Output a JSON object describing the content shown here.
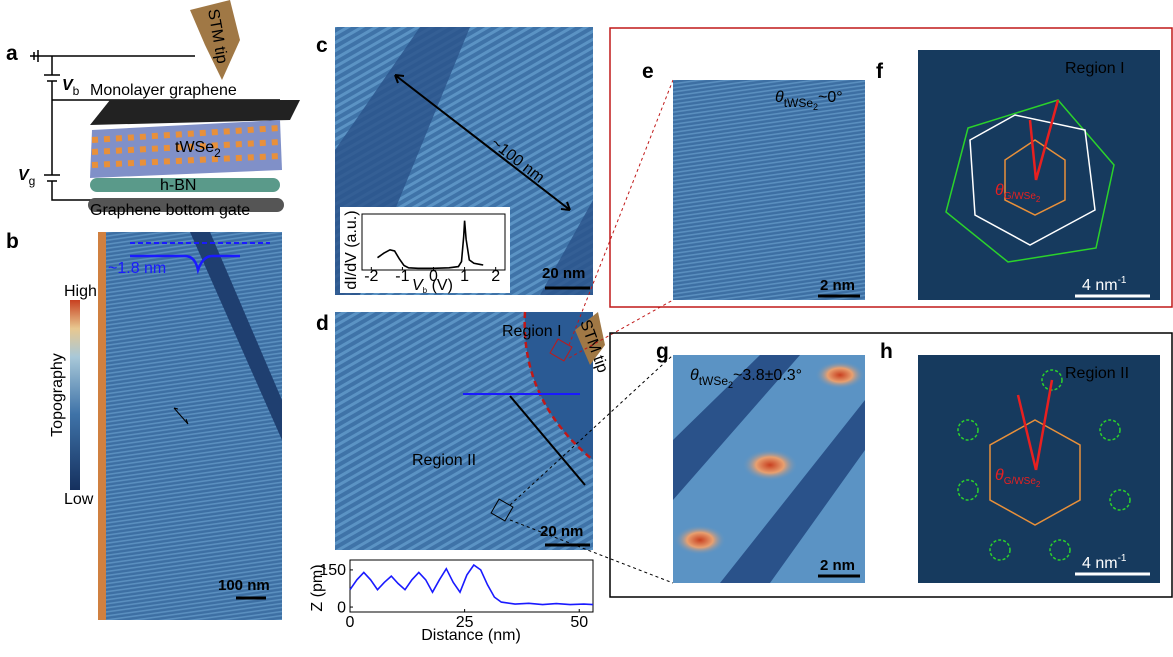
{
  "panels": {
    "a": {
      "label": "a",
      "tip": "STM tip",
      "vb": [
        "V",
        "b"
      ],
      "vg": [
        "V",
        "g"
      ],
      "graphene": "Monolayer graphene",
      "twse2": [
        "tWSe",
        "2"
      ],
      "hbn": "h-BN",
      "gate": "Graphene bottom gate"
    },
    "b": {
      "label": "b",
      "colorbar_title": "Topography",
      "high": "High",
      "low": "Low",
      "step": "~1.8 nm",
      "scale": "100 nm"
    },
    "c": {
      "label": "c",
      "length": "~100 nm",
      "scale": "20 nm"
    },
    "d": {
      "label": "d",
      "region1": "Region I",
      "region2": "Region II",
      "tip": "STM tip",
      "scale": "20 nm"
    },
    "e": {
      "label": "e",
      "theta": [
        "θ",
        "tWSe",
        "2",
        "~0°"
      ],
      "scale": "2 nm"
    },
    "f": {
      "label": "f",
      "region": "Region I",
      "theta": [
        "θ",
        "G/WSe",
        "2"
      ],
      "scale": [
        "4 nm",
        "-1"
      ]
    },
    "g": {
      "label": "g",
      "theta": [
        "θ",
        "tWSe",
        "2",
        "~3.8±0.3°"
      ],
      "scale": "2 nm"
    },
    "h": {
      "label": "h",
      "region": "Region II",
      "theta": [
        "θ",
        "G/WSe",
        "2"
      ],
      "scale": [
        "4 nm",
        "-1"
      ]
    }
  },
  "chart_data": [
    {
      "type": "line",
      "x_label": [
        "V",
        "b",
        " (V)"
      ],
      "y_label": "dI/dV (a.u.)",
      "color": "#000000",
      "x": [
        -1.8,
        -1.6,
        -1.4,
        -1.25,
        -1.1,
        -0.95,
        -0.8,
        -0.5,
        0,
        0.5,
        0.8,
        0.9,
        0.97,
        1.0,
        1.05,
        1.15,
        1.3,
        1.5,
        1.6
      ],
      "values": [
        0.22,
        0.3,
        0.36,
        0.34,
        0.2,
        0.08,
        0.04,
        0.03,
        0.03,
        0.04,
        0.06,
        0.15,
        0.6,
        0.88,
        0.55,
        0.18,
        0.12,
        0.1,
        0.09
      ],
      "xlim": [
        -2.3,
        2.3
      ],
      "ylim": [
        0,
        1
      ],
      "xticks": [
        -2,
        -1,
        0,
        1,
        2
      ]
    },
    {
      "type": "line",
      "x_label": "Distance (nm)",
      "y_label": "Z (pm)",
      "color": "#1a1aff",
      "x": [
        0,
        1.5,
        3,
        4.5,
        6,
        7.5,
        9,
        10.5,
        12,
        13.5,
        15,
        16.5,
        18,
        19.5,
        21,
        22.5,
        24,
        25.5,
        27,
        28.5,
        30,
        31.5,
        33,
        36,
        39,
        42,
        45,
        48,
        51,
        53
      ],
      "values": [
        70,
        110,
        140,
        110,
        70,
        100,
        125,
        95,
        70,
        110,
        140,
        110,
        60,
        110,
        155,
        100,
        60,
        130,
        170,
        150,
        90,
        40,
        20,
        12,
        15,
        10,
        14,
        10,
        12,
        10
      ],
      "xlim": [
        0,
        53
      ],
      "ylim": [
        -20,
        190
      ],
      "xticks": [
        0,
        25,
        50
      ],
      "yticks": [
        0,
        150
      ]
    }
  ]
}
